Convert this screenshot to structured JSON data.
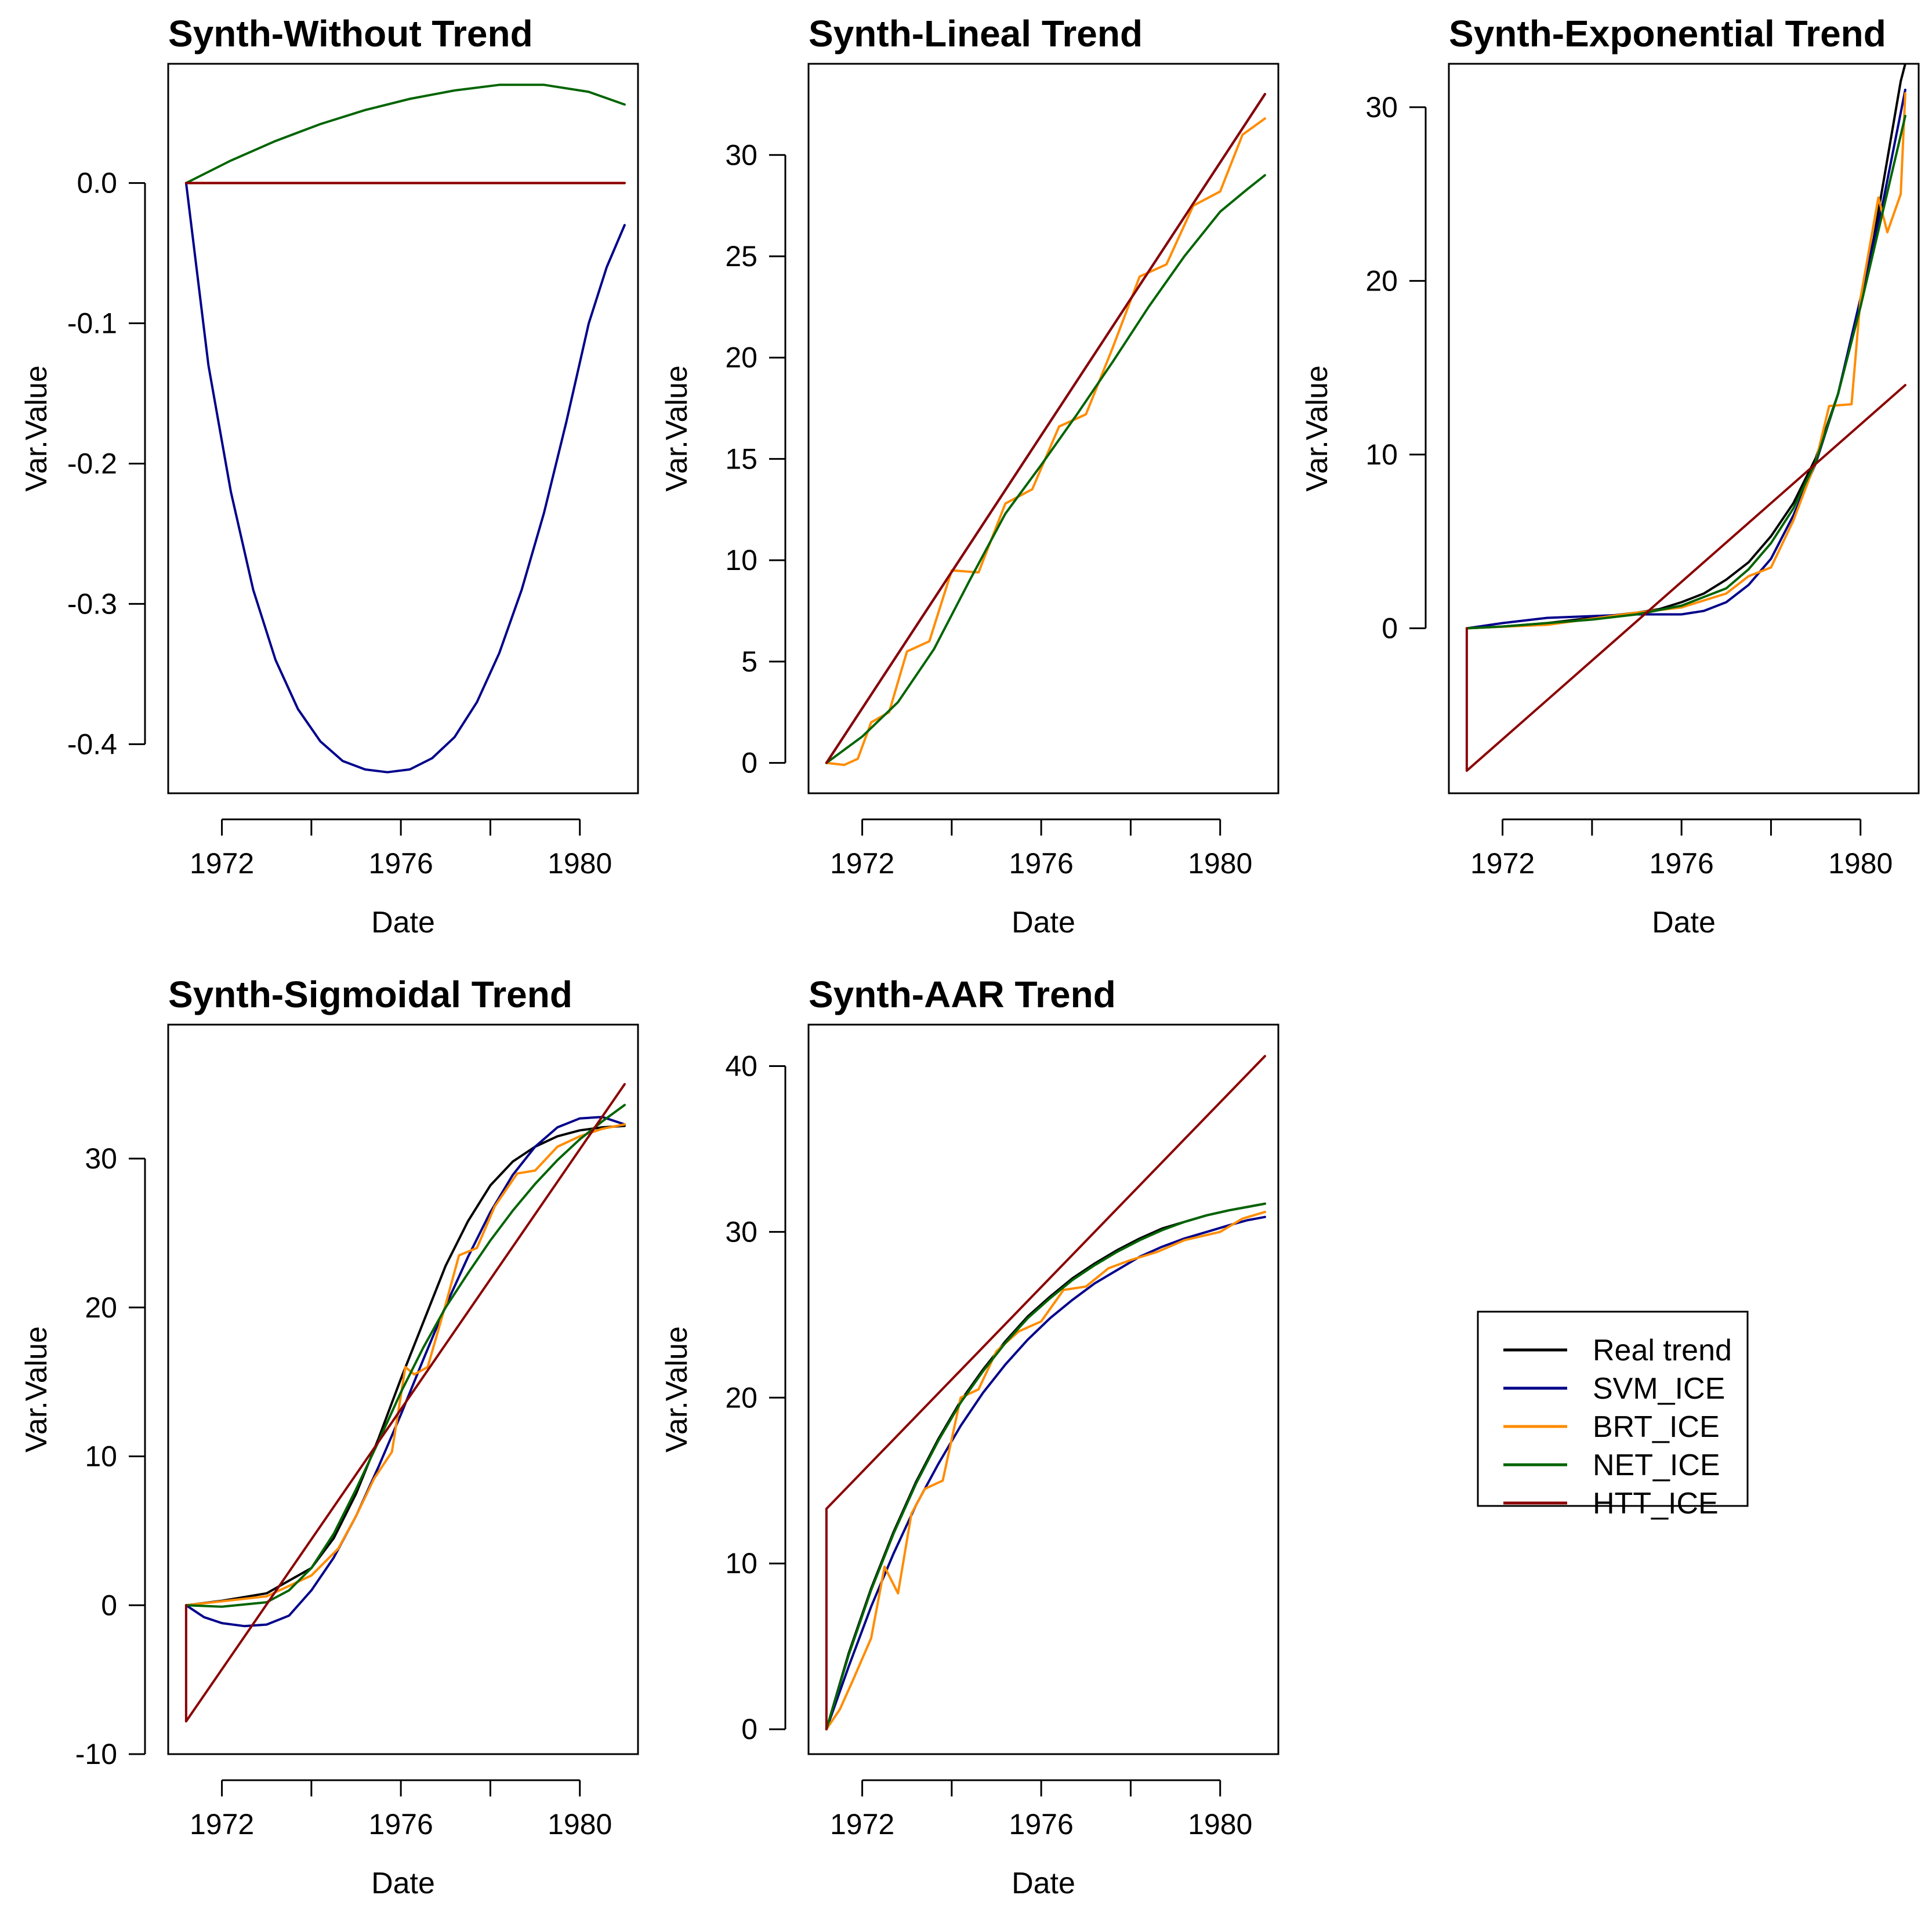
{
  "figure": {
    "x_axis_label": "Date",
    "y_axis_label": "Var.Value"
  },
  "legend": {
    "entries": [
      {
        "label": "Real trend",
        "color": "#000000"
      },
      {
        "label": "SVM_ICE",
        "color": "#00008b"
      },
      {
        "label": "BRT_ICE",
        "color": "#ff8c00"
      },
      {
        "label": "NET_ICE",
        "color": "#006400"
      },
      {
        "label": "HTT_ICE",
        "color": "#8b0000"
      }
    ]
  },
  "chart_data": [
    {
      "type": "line",
      "title": "Synth-Without Trend",
      "xlabel": "Date",
      "ylabel": "Var.Value",
      "xlim": [
        1970.8,
        1981.3
      ],
      "ylim": [
        -0.435,
        0.085
      ],
      "x_ticks": [
        1972,
        1974,
        1976,
        1978,
        1980
      ],
      "x_tick_labels": [
        "1972",
        "1976",
        "1980"
      ],
      "y_ticks": [
        0.0,
        -0.1,
        -0.2,
        -0.3,
        -0.4
      ],
      "y_tick_labels": [
        "0.0",
        "-0.1",
        "-0.2",
        "-0.3",
        "-0.4"
      ],
      "series": [
        {
          "name": "Real trend",
          "color": "#000000",
          "x": [
            1971.2,
            1981.0
          ],
          "values": [
            0.0,
            0.0
          ]
        },
        {
          "name": "SVM_ICE",
          "color": "#00008b",
          "x": [
            1971.2,
            1971.7,
            1972.2,
            1972.7,
            1973.2,
            1973.7,
            1974.2,
            1974.7,
            1975.2,
            1975.7,
            1976.2,
            1976.7,
            1977.2,
            1977.7,
            1978.2,
            1978.7,
            1979.2,
            1979.7,
            1980.2,
            1980.6,
            1981.0
          ],
          "values": [
            0.0,
            -0.13,
            -0.22,
            -0.29,
            -0.34,
            -0.375,
            -0.398,
            -0.412,
            -0.418,
            -0.42,
            -0.418,
            -0.41,
            -0.395,
            -0.37,
            -0.335,
            -0.29,
            -0.235,
            -0.17,
            -0.1,
            -0.06,
            -0.03
          ]
        },
        {
          "name": "BRT_ICE",
          "color": "#ff8c00",
          "x": [
            1971.2,
            1981.0
          ],
          "values": [
            0.0,
            0.0
          ]
        },
        {
          "name": "NET_ICE",
          "color": "#006400",
          "x": [
            1971.2,
            1972.2,
            1973.2,
            1974.2,
            1975.2,
            1976.2,
            1977.2,
            1978.2,
            1979.2,
            1980.2,
            1981.0
          ],
          "values": [
            0.0,
            0.016,
            0.03,
            0.042,
            0.052,
            0.06,
            0.066,
            0.07,
            0.07,
            0.065,
            0.056
          ]
        },
        {
          "name": "HTT_ICE",
          "color": "#8b0000",
          "x": [
            1971.2,
            1981.0
          ],
          "values": [
            0.0,
            0.0
          ]
        }
      ]
    },
    {
      "type": "line",
      "title": "Synth-Lineal Trend",
      "xlabel": "Date",
      "ylabel": "Var.Value",
      "xlim": [
        1970.8,
        1981.3
      ],
      "ylim": [
        -1.5,
        34.5
      ],
      "x_ticks": [
        1972,
        1974,
        1976,
        1978,
        1980
      ],
      "x_tick_labels": [
        "1972",
        "1976",
        "1980"
      ],
      "y_ticks": [
        0,
        5,
        10,
        15,
        20,
        25,
        30
      ],
      "y_tick_labels": [
        "0",
        "5",
        "10",
        "15",
        "20",
        "25",
        "30"
      ],
      "series": [
        {
          "name": "Real trend",
          "color": "#000000",
          "x": [
            1971.2,
            1981.0
          ],
          "values": [
            0.0,
            33.0
          ]
        },
        {
          "name": "SVM_ICE",
          "color": "#00008b",
          "x": [
            1971.2,
            1981.0
          ],
          "values": [
            0.0,
            33.0
          ]
        },
        {
          "name": "BRT_ICE",
          "color": "#ff8c00",
          "x": [
            1971.2,
            1971.6,
            1971.9,
            1972.2,
            1972.6,
            1973.0,
            1973.5,
            1974.0,
            1974.6,
            1975.2,
            1975.8,
            1976.4,
            1977.0,
            1977.6,
            1978.2,
            1978.8,
            1979.4,
            1980.0,
            1980.5,
            1981.0
          ],
          "values": [
            0.0,
            -0.1,
            0.2,
            2.0,
            2.5,
            5.5,
            6.0,
            9.5,
            9.4,
            12.8,
            13.5,
            16.6,
            17.2,
            20.5,
            24.0,
            24.6,
            27.5,
            28.2,
            31.0,
            31.8
          ]
        },
        {
          "name": "NET_ICE",
          "color": "#006400",
          "x": [
            1971.2,
            1972.0,
            1972.8,
            1973.6,
            1974.4,
            1975.2,
            1976.0,
            1976.8,
            1977.6,
            1978.4,
            1979.2,
            1980.0,
            1980.6,
            1981.0
          ],
          "values": [
            0.0,
            1.3,
            3.0,
            5.6,
            9.0,
            12.3,
            14.7,
            17.2,
            19.8,
            22.5,
            25.0,
            27.2,
            28.3,
            29.0
          ]
        },
        {
          "name": "HTT_ICE",
          "color": "#8b0000",
          "x": [
            1971.2,
            1981.0
          ],
          "values": [
            0.0,
            33.0
          ]
        }
      ]
    },
    {
      "type": "line",
      "title": "Synth-Exponential Trend",
      "xlabel": "Date",
      "ylabel": "Var.Value",
      "xlim": [
        1970.8,
        1981.3
      ],
      "ylim": [
        -9.5,
        32.5
      ],
      "x_ticks": [
        1972,
        1974,
        1976,
        1978,
        1980
      ],
      "x_tick_labels": [
        "1972",
        "1976",
        "1980"
      ],
      "y_ticks": [
        0,
        10,
        20,
        30
      ],
      "y_tick_labels": [
        "0",
        "10",
        "20",
        "30"
      ],
      "series": [
        {
          "name": "Real trend",
          "color": "#000000",
          "x": [
            1971.2,
            1972.0,
            1973.0,
            1974.0,
            1975.0,
            1975.5,
            1976.0,
            1976.5,
            1977.0,
            1977.5,
            1978.0,
            1978.5,
            1979.0,
            1979.5,
            1980.0,
            1980.3,
            1980.6,
            1980.9,
            1981.0
          ],
          "values": [
            0.0,
            0.1,
            0.3,
            0.6,
            0.9,
            1.1,
            1.5,
            2.0,
            2.8,
            3.8,
            5.3,
            7.2,
            9.8,
            13.5,
            18.7,
            22.5,
            27.0,
            31.5,
            32.5
          ]
        },
        {
          "name": "SVM_ICE",
          "color": "#00008b",
          "x": [
            1971.2,
            1972.0,
            1973.0,
            1974.0,
            1975.0,
            1976.0,
            1976.5,
            1977.0,
            1977.5,
            1978.0,
            1978.5,
            1979.0,
            1979.5,
            1980.0,
            1980.5,
            1981.0
          ],
          "values": [
            0.0,
            0.3,
            0.6,
            0.7,
            0.8,
            0.8,
            1.0,
            1.5,
            2.5,
            4.0,
            6.5,
            9.5,
            13.5,
            19.0,
            24.5,
            31.0
          ]
        },
        {
          "name": "BRT_ICE",
          "color": "#ff8c00",
          "x": [
            1971.2,
            1973.0,
            1975.0,
            1976.0,
            1977.0,
            1977.5,
            1978.0,
            1978.5,
            1979.0,
            1979.3,
            1979.8,
            1980.0,
            1980.4,
            1980.6,
            1980.9,
            1981.0
          ],
          "values": [
            0.0,
            0.2,
            0.9,
            1.2,
            2.0,
            3.0,
            3.5,
            6.2,
            9.6,
            12.8,
            12.9,
            19.0,
            24.8,
            22.8,
            25.0,
            30.8
          ]
        },
        {
          "name": "NET_ICE",
          "color": "#006400",
          "x": [
            1971.2,
            1972.0,
            1973.0,
            1974.0,
            1975.0,
            1976.0,
            1977.0,
            1977.5,
            1978.0,
            1978.5,
            1979.0,
            1979.5,
            1980.0,
            1980.5,
            1981.0
          ],
          "values": [
            0.0,
            0.1,
            0.3,
            0.5,
            0.8,
            1.3,
            2.3,
            3.4,
            4.9,
            6.9,
            9.6,
            13.5,
            18.5,
            24.0,
            29.5
          ]
        },
        {
          "name": "HTT_ICE",
          "color": "#8b0000",
          "x": [
            1971.2,
            1971.2,
            1981.0
          ],
          "values": [
            0.0,
            -8.2,
            14.0
          ]
        }
      ]
    },
    {
      "type": "line",
      "title": "Synth-Sigmoidal Trend",
      "xlabel": "Date",
      "ylabel": "Var.Value",
      "xlim": [
        1970.8,
        1981.3
      ],
      "ylim": [
        -10.0,
        39.0
      ],
      "x_ticks": [
        1972,
        1974,
        1976,
        1978,
        1980
      ],
      "x_tick_labels": [
        "1972",
        "1976",
        "1980"
      ],
      "y_ticks": [
        -10,
        0,
        10,
        20,
        30
      ],
      "y_tick_labels": [
        "-10",
        "0",
        "10",
        "20",
        "30"
      ],
      "series": [
        {
          "name": "Real trend",
          "color": "#000000",
          "x": [
            1971.2,
            1972.0,
            1973.0,
            1974.0,
            1974.5,
            1975.0,
            1975.5,
            1976.0,
            1976.5,
            1977.0,
            1977.5,
            1978.0,
            1978.5,
            1979.0,
            1979.5,
            1980.0,
            1980.5,
            1981.0
          ],
          "values": [
            0.0,
            0.3,
            0.8,
            2.5,
            4.5,
            7.5,
            11.2,
            15.2,
            19.0,
            22.8,
            25.8,
            28.2,
            29.8,
            30.8,
            31.5,
            31.9,
            32.1,
            32.2
          ]
        },
        {
          "name": "SVM_ICE",
          "color": "#00008b",
          "x": [
            1971.2,
            1971.6,
            1972.0,
            1972.5,
            1973.0,
            1973.5,
            1974.0,
            1974.5,
            1975.0,
            1975.5,
            1976.0,
            1976.5,
            1977.0,
            1977.5,
            1978.0,
            1978.5,
            1979.0,
            1979.5,
            1980.0,
            1980.5,
            1981.0
          ],
          "values": [
            0.0,
            -0.8,
            -1.2,
            -1.4,
            -1.3,
            -0.7,
            1.0,
            3.2,
            6.0,
            9.3,
            12.8,
            16.5,
            20.1,
            23.4,
            26.4,
            28.9,
            30.8,
            32.1,
            32.7,
            32.8,
            32.3
          ]
        },
        {
          "name": "BRT_ICE",
          "color": "#ff8c00",
          "x": [
            1971.2,
            1973.0,
            1974.0,
            1974.6,
            1975.0,
            1975.4,
            1975.8,
            1976.1,
            1976.3,
            1976.6,
            1977.0,
            1977.3,
            1977.7,
            1978.1,
            1978.6,
            1979.0,
            1979.5,
            1980.0,
            1980.5,
            1981.0
          ],
          "values": [
            0.0,
            0.6,
            2.0,
            3.8,
            6.0,
            8.5,
            10.3,
            16.0,
            15.5,
            16.0,
            20.2,
            23.5,
            24.0,
            26.8,
            29.0,
            29.2,
            30.8,
            31.5,
            32.0,
            32.3
          ]
        },
        {
          "name": "NET_ICE",
          "color": "#006400",
          "x": [
            1971.2,
            1972.0,
            1973.0,
            1973.5,
            1974.0,
            1974.5,
            1975.0,
            1975.5,
            1976.0,
            1976.5,
            1977.0,
            1977.5,
            1978.0,
            1978.5,
            1979.0,
            1979.5,
            1980.0,
            1980.5,
            1981.0
          ],
          "values": [
            0.0,
            -0.1,
            0.2,
            1.0,
            2.5,
            4.8,
            7.8,
            11.0,
            14.3,
            17.3,
            20.0,
            22.3,
            24.5,
            26.5,
            28.3,
            29.9,
            31.3,
            32.5,
            33.6
          ]
        },
        {
          "name": "HTT_ICE",
          "color": "#8b0000",
          "x": [
            1971.2,
            1971.2,
            1981.0
          ],
          "values": [
            0.0,
            -7.8,
            35.0
          ]
        }
      ]
    },
    {
      "type": "line",
      "title": "Synth-AAR Trend",
      "xlabel": "Date",
      "ylabel": "Var.Value",
      "xlim": [
        1970.8,
        1981.3
      ],
      "ylim": [
        -1.5,
        42.5
      ],
      "x_ticks": [
        1972,
        1974,
        1976,
        1978,
        1980
      ],
      "x_tick_labels": [
        "1972",
        "1976",
        "1980"
      ],
      "y_ticks": [
        0,
        10,
        20,
        30,
        40
      ],
      "y_tick_labels": [
        "0",
        "10",
        "20",
        "30",
        "40"
      ],
      "series": [
        {
          "name": "Real trend",
          "color": "#000000",
          "x": [
            1971.2,
            1971.7,
            1972.2,
            1972.7,
            1973.2,
            1973.7,
            1974.2,
            1974.7,
            1975.2,
            1975.7,
            1976.2,
            1976.7,
            1977.2,
            1977.7,
            1978.2,
            1978.7,
            1979.2,
            1979.7,
            1980.2,
            1980.6,
            1981.0
          ],
          "values": [
            0.0,
            4.6,
            8.5,
            11.9,
            14.9,
            17.5,
            19.8,
            21.7,
            23.4,
            24.9,
            26.1,
            27.2,
            28.1,
            28.9,
            29.6,
            30.2,
            30.6,
            31.0,
            31.3,
            31.5,
            31.7
          ]
        },
        {
          "name": "SVM_ICE",
          "color": "#00008b",
          "x": [
            1971.2,
            1971.7,
            1972.2,
            1972.7,
            1973.2,
            1973.7,
            1974.2,
            1974.7,
            1975.2,
            1975.7,
            1976.2,
            1976.7,
            1977.2,
            1977.7,
            1978.2,
            1978.7,
            1979.2,
            1979.7,
            1980.2,
            1980.6,
            1981.0
          ],
          "values": [
            0.0,
            3.8,
            7.4,
            10.6,
            13.5,
            16.0,
            18.3,
            20.3,
            22.0,
            23.5,
            24.8,
            25.9,
            26.9,
            27.7,
            28.5,
            29.1,
            29.6,
            30.0,
            30.4,
            30.7,
            30.9
          ]
        },
        {
          "name": "BRT_ICE",
          "color": "#ff8c00",
          "x": [
            1971.2,
            1971.5,
            1971.8,
            1972.2,
            1972.5,
            1972.8,
            1973.1,
            1973.4,
            1973.8,
            1974.2,
            1974.6,
            1975.0,
            1975.5,
            1976.0,
            1976.5,
            1977.0,
            1977.5,
            1978.0,
            1978.6,
            1979.2,
            1980.0,
            1980.5,
            1981.0
          ],
          "values": [
            0.0,
            1.2,
            3.0,
            5.5,
            9.8,
            8.2,
            13.0,
            14.5,
            15.0,
            20.0,
            20.5,
            22.8,
            24.0,
            24.6,
            26.5,
            26.7,
            27.8,
            28.3,
            28.8,
            29.5,
            30.0,
            30.8,
            31.2
          ]
        },
        {
          "name": "NET_ICE",
          "color": "#006400",
          "x": [
            1971.2,
            1971.7,
            1972.2,
            1972.7,
            1973.2,
            1973.7,
            1974.2,
            1974.7,
            1975.2,
            1975.7,
            1976.2,
            1976.7,
            1977.2,
            1977.7,
            1978.2,
            1978.7,
            1979.2,
            1979.7,
            1980.2,
            1980.6,
            1981.0
          ],
          "values": [
            0.0,
            4.5,
            8.4,
            11.8,
            14.8,
            17.4,
            19.7,
            21.6,
            23.3,
            24.8,
            26.0,
            27.1,
            28.0,
            28.8,
            29.5,
            30.1,
            30.6,
            31.0,
            31.3,
            31.5,
            31.7
          ]
        },
        {
          "name": "HTT_ICE",
          "color": "#8b0000",
          "x": [
            1971.2,
            1971.2,
            1981.0
          ],
          "values": [
            0.0,
            13.3,
            40.6
          ]
        }
      ]
    }
  ]
}
